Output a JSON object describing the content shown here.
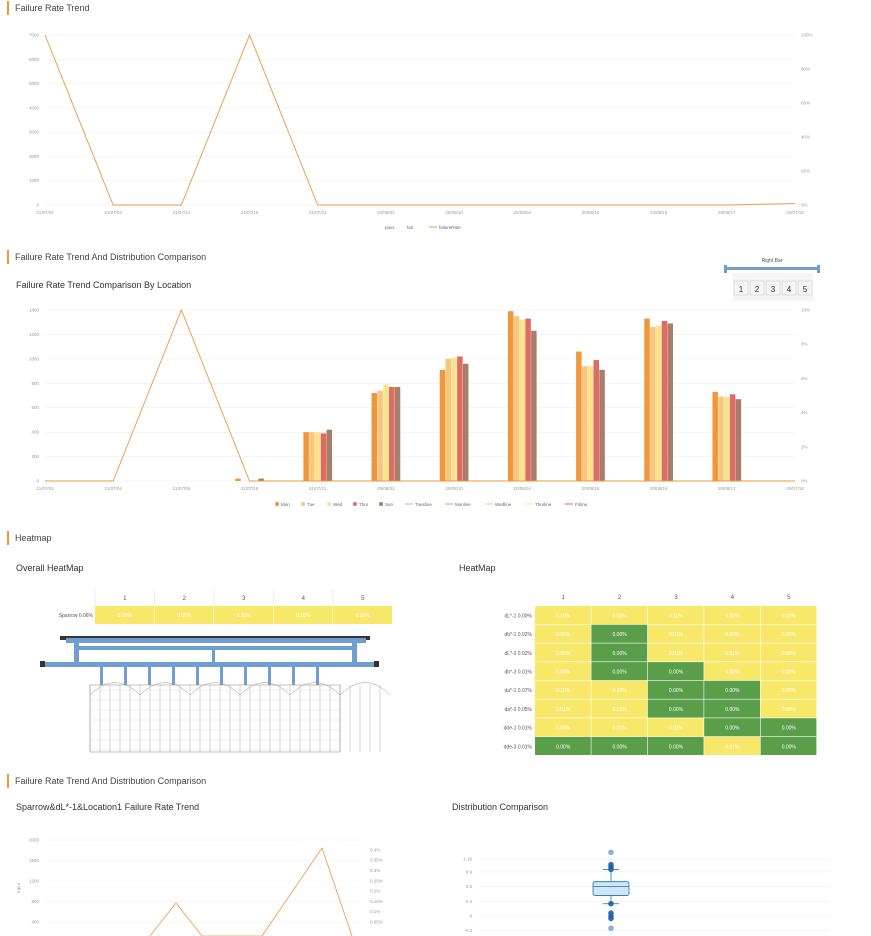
{
  "sections": {
    "s1": "Failure Rate Trend",
    "s2": "Failure Rate Trend And Distribution Comparison",
    "s3": "Heatmap",
    "s4": "Failure Rate Trend And Distribution Comparison"
  },
  "subtitles": {
    "chart2": "Failure Rate Trend Comparison By Location",
    "overall_heatmap": "Overall HeatMap",
    "heatmap": "HeatMap",
    "chart4": "Sparrow&dL*-1&Location1 Failure Rate Trend",
    "distribution": "Distribution Comparison"
  },
  "right_bar": {
    "title": "Right Bar",
    "slots": [
      "1",
      "2",
      "3",
      "4",
      "5"
    ]
  },
  "chart_data": [
    {
      "type": "line",
      "title": "Failure Rate Trend",
      "x": [
        "21/07/02",
        "21/07/04",
        "21/07/14",
        "21/07/16",
        "21/07/21",
        "20/08/02",
        "20/08/10",
        "20/08/04",
        "20/08/10",
        "20/08/16",
        "20/08/17",
        "20/07/18"
      ],
      "y_left": {
        "min": 0,
        "max": 7000,
        "ticks": [
          "0",
          "1000",
          "2000",
          "3000",
          "4000",
          "5000",
          "6000",
          "7000"
        ]
      },
      "y_right": {
        "ticks": [
          "0%",
          "20%",
          "40%",
          "60%",
          "80%",
          "100%"
        ]
      },
      "series": [
        {
          "name": "failureRate",
          "color": "#f0963c",
          "values": [
            7000,
            0,
            0,
            7000,
            0,
            0,
            0,
            0,
            0,
            0,
            0,
            60
          ]
        }
      ],
      "legend": [
        {
          "name": "pass",
          "color": "#999999"
        },
        {
          "name": "fail",
          "color": "#999999"
        },
        {
          "name": "failureRate",
          "color": "#f0963c"
        }
      ]
    },
    {
      "type": "bar",
      "title": "Failure Rate Trend Comparison By Location",
      "x": [
        "21/07/02",
        "21/07/04",
        "21/07/08",
        "21/07/16",
        "21/07/21",
        "20/08/02",
        "20/08/10",
        "20/08/04",
        "20/08/10",
        "20/08/16",
        "20/08/17",
        "20/07/18"
      ],
      "y_left": {
        "min": 0,
        "max": 1400,
        "ticks": [
          "0",
          "200",
          "400",
          "600",
          "800",
          "1000",
          "1200",
          "1400"
        ]
      },
      "y_right": {
        "ticks": [
          "0%",
          "2%",
          "4%",
          "6%",
          "8%",
          "10%"
        ]
      },
      "series": [
        {
          "name": "Mon",
          "color": "#f0963c",
          "values": [
            0,
            0,
            0,
            20,
            400,
            720,
            910,
            1390,
            1060,
            1330,
            730,
            0
          ]
        },
        {
          "name": "Tue",
          "color": "#f8c77e",
          "values": [
            0,
            0,
            0,
            0,
            400,
            740,
            1000,
            1350,
            940,
            1260,
            690,
            0
          ]
        },
        {
          "name": "Wed",
          "color": "#fbe38e",
          "values": [
            0,
            0,
            0,
            0,
            400,
            790,
            1010,
            1320,
            940,
            1270,
            690,
            0
          ]
        },
        {
          "name": "Thur",
          "color": "#e06b62",
          "values": [
            0,
            0,
            0,
            0,
            390,
            770,
            1020,
            1330,
            990,
            1310,
            710,
            0
          ]
        },
        {
          "name": "Sun",
          "color": "#a87e6a",
          "values": [
            0,
            0,
            0,
            20,
            420,
            770,
            960,
            1230,
            910,
            1290,
            670,
            0
          ]
        }
      ],
      "line_series": [
        {
          "name": "Mon",
          "color": "#f0963c",
          "values": [
            0,
            0,
            1400,
            0,
            0,
            0,
            0,
            0,
            0,
            0,
            0,
            0
          ]
        }
      ],
      "legend": [
        {
          "name": "Mon",
          "color": "#f0963c"
        },
        {
          "name": "Tue",
          "color": "#f8c77e"
        },
        {
          "name": "Wed",
          "color": "#fbe38e"
        },
        {
          "name": "Thur",
          "color": "#e06b62"
        },
        {
          "name": "Sun",
          "color": "#a87e6a"
        },
        {
          "name": "Tuesline",
          "color": "#bbbbbb"
        },
        {
          "name": "Monline",
          "color": "#f0963c"
        },
        {
          "name": "Wedline",
          "color": "#f8c77e"
        },
        {
          "name": "Thurline",
          "color": "#fbe38e"
        },
        {
          "name": "Friline",
          "color": "#e06b62"
        }
      ]
    },
    {
      "type": "heatmap",
      "title": "Overall HeatMap",
      "columns": [
        "1",
        "2",
        "3",
        "4",
        "5"
      ],
      "rows": [
        {
          "label": "Sparrow 0.06%",
          "values": [
            "0.10%",
            "0.00%",
            "0.10%",
            "0.10%",
            "0.00%"
          ]
        }
      ]
    },
    {
      "type": "heatmap",
      "title": "HeatMap",
      "columns": [
        "1",
        "2",
        "3",
        "4",
        "5"
      ],
      "rows": [
        {
          "label": "dL*-1  0.00%",
          "values": [
            "0.10%",
            "0.00%",
            "0.10%",
            "0.00%",
            "0.10%"
          ],
          "green": [
            false,
            false,
            false,
            false,
            false
          ]
        },
        {
          "label": "db*-1  0.02%",
          "values": [
            "0.00%",
            "0.00%",
            "0.01%",
            "0.00%",
            "0.00%"
          ],
          "green": [
            false,
            true,
            false,
            false,
            false
          ]
        },
        {
          "label": "dL*-3  0.02%",
          "values": [
            "0.00%",
            "0.00%",
            "0.01%",
            "0.01%",
            "0.00%"
          ],
          "green": [
            false,
            true,
            false,
            false,
            false
          ]
        },
        {
          "label": "db*-3  0.01%",
          "values": [
            "0.00%",
            "0.00%",
            "0.00%",
            "0.00%",
            "0.00%"
          ],
          "green": [
            false,
            true,
            true,
            false,
            false
          ]
        },
        {
          "label": "da*-1  0.07%",
          "values": [
            "0.10%",
            "0.00%",
            "0.00%",
            "0.00%",
            "0.00%"
          ],
          "green": [
            false,
            false,
            true,
            true,
            false
          ]
        },
        {
          "label": "da*-3  0.05%",
          "values": [
            "0.01%",
            "0.01%",
            "0.00%",
            "0.00%",
            "0.00%"
          ],
          "green": [
            false,
            false,
            true,
            true,
            false
          ]
        },
        {
          "label": "dde-1  0.01%",
          "values": [
            "0.00%",
            "0.01%",
            "0.01%",
            "0.00%",
            "0.00%"
          ],
          "green": [
            false,
            false,
            false,
            true,
            true
          ]
        },
        {
          "label": "dde-3  0.01%",
          "values": [
            "0.00%",
            "0.00%",
            "0.00%",
            "0.01%",
            "0.00%"
          ],
          "green": [
            true,
            true,
            true,
            false,
            true
          ]
        }
      ]
    },
    {
      "type": "line",
      "title": "Sparrow&dL*-1&Location1 Failure Rate Trend",
      "ylabel": "Input",
      "y_left": {
        "ticks": [
          "400",
          "800",
          "1200",
          "1600",
          "2000"
        ]
      },
      "y_right": {
        "ticks": [
          "0.05%",
          "0.1%",
          "0.15%",
          "0.2%",
          "0.25%",
          "0.3%",
          "0.35%",
          "0.4%"
        ]
      },
      "series": [
        {
          "name": "failureRate",
          "color": "#f0963c",
          "values": [
            0,
            0,
            0.16,
            0,
            0,
            0,
            0.38,
            0
          ]
        }
      ]
    },
    {
      "type": "box",
      "title": "Distribution Comparison",
      "y_ticks": [
        "1.16",
        "0.9",
        "0.6",
        "0.3",
        "0",
        "-0.3"
      ],
      "box": {
        "min": 0.25,
        "q1": 0.42,
        "median": 0.6,
        "q3": 0.7,
        "max": 0.95
      },
      "outliers": [
        1.3,
        1.05,
        1.0,
        0.95,
        0.25,
        0.06,
        0.0,
        -0.05,
        -0.25
      ]
    }
  ]
}
